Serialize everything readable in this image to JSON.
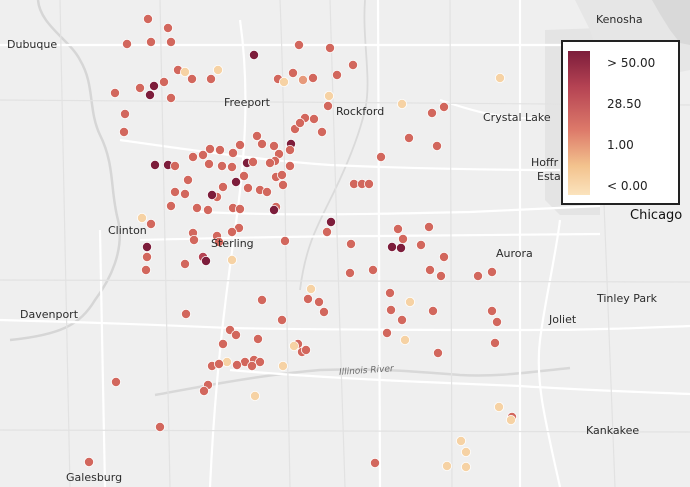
{
  "legend": {
    "labels": [
      "> 50.00",
      "28.50",
      "1.00",
      "< 0.00"
    ]
  },
  "cities": [
    {
      "name": "Kenosha",
      "big": false
    },
    {
      "name": "Dubuque",
      "big": false
    },
    {
      "name": "Freeport",
      "big": false
    },
    {
      "name": "Rockford",
      "big": false
    },
    {
      "name": "Crystal Lake",
      "big": false
    },
    {
      "name": "Hoffr",
      "big": false
    },
    {
      "name": "Esta",
      "big": false
    },
    {
      "name": "Chicago",
      "big": true
    },
    {
      "name": "Clinton",
      "big": false
    },
    {
      "name": "Sterling",
      "big": false
    },
    {
      "name": "Aurora",
      "big": false
    },
    {
      "name": "Davenport",
      "big": false
    },
    {
      "name": "Tinley Park",
      "big": false
    },
    {
      "name": "Joliet",
      "big": false
    },
    {
      "name": "Kankakee",
      "big": false
    },
    {
      "name": "Galesburg",
      "big": false
    }
  ],
  "river_label": "Illinois River",
  "colors": {
    "high": "#7d1d3b",
    "mid_high": "#b54353",
    "mid": "#d2675d",
    "low": "#e6997b",
    "none": "#f6d2a4"
  },
  "points": [
    [
      148,
      19,
      2
    ],
    [
      168,
      28,
      2
    ],
    [
      171,
      42,
      2
    ],
    [
      151,
      42,
      2
    ],
    [
      127,
      44,
      2
    ],
    [
      254,
      55,
      4
    ],
    [
      299,
      45,
      2
    ],
    [
      330,
      48,
      2
    ],
    [
      353,
      65,
      2
    ],
    [
      337,
      75,
      2
    ],
    [
      293,
      73,
      2
    ],
    [
      313,
      78,
      2
    ],
    [
      178,
      70,
      2
    ],
    [
      185,
      72,
      0
    ],
    [
      218,
      70,
      0
    ],
    [
      211,
      79,
      2
    ],
    [
      192,
      79,
      2
    ],
    [
      164,
      82,
      2
    ],
    [
      171,
      98,
      2
    ],
    [
      140,
      88,
      2
    ],
    [
      154,
      86,
      4
    ],
    [
      150,
      95,
      4
    ],
    [
      115,
      93,
      2
    ],
    [
      278,
      79,
      2
    ],
    [
      284,
      82,
      0
    ],
    [
      303,
      80,
      1
    ],
    [
      329,
      96,
      0
    ],
    [
      328,
      106,
      2
    ],
    [
      402,
      104,
      0
    ],
    [
      432,
      113,
      2
    ],
    [
      444,
      107,
      2
    ],
    [
      500,
      78,
      0
    ],
    [
      125,
      114,
      2
    ],
    [
      124,
      132,
      2
    ],
    [
      305,
      118,
      2
    ],
    [
      314,
      119,
      2
    ],
    [
      295,
      129,
      2
    ],
    [
      300,
      123,
      2
    ],
    [
      322,
      132,
      2
    ],
    [
      409,
      138,
      2
    ],
    [
      437,
      146,
      2
    ],
    [
      257,
      136,
      2
    ],
    [
      262,
      144,
      2
    ],
    [
      240,
      145,
      2
    ],
    [
      210,
      149,
      2
    ],
    [
      220,
      150,
      2
    ],
    [
      203,
      155,
      2
    ],
    [
      193,
      157,
      2
    ],
    [
      233,
      153,
      2
    ],
    [
      274,
      146,
      2
    ],
    [
      291,
      144,
      4
    ],
    [
      290,
      150,
      2
    ],
    [
      279,
      154,
      2
    ],
    [
      275,
      161,
      2
    ],
    [
      290,
      166,
      2
    ],
    [
      247,
      163,
      4
    ],
    [
      253,
      162,
      2
    ],
    [
      270,
      163,
      2
    ],
    [
      155,
      165,
      4
    ],
    [
      168,
      165,
      4
    ],
    [
      175,
      166,
      2
    ],
    [
      209,
      164,
      2
    ],
    [
      222,
      166,
      2
    ],
    [
      232,
      167,
      2
    ],
    [
      248,
      188,
      2
    ],
    [
      236,
      182,
      4
    ],
    [
      244,
      176,
      2
    ],
    [
      283,
      185,
      2
    ],
    [
      276,
      177,
      2
    ],
    [
      282,
      175,
      2
    ],
    [
      260,
      190,
      2
    ],
    [
      267,
      192,
      2
    ],
    [
      276,
      207,
      2
    ],
    [
      274,
      210,
      4
    ],
    [
      188,
      180,
      2
    ],
    [
      185,
      194,
      2
    ],
    [
      175,
      192,
      2
    ],
    [
      171,
      206,
      2
    ],
    [
      217,
      197,
      2
    ],
    [
      212,
      195,
      4
    ],
    [
      223,
      187,
      2
    ],
    [
      197,
      208,
      2
    ],
    [
      208,
      210,
      2
    ],
    [
      233,
      208,
      2
    ],
    [
      240,
      209,
      2
    ],
    [
      354,
      184,
      2
    ],
    [
      362,
      184,
      2
    ],
    [
      369,
      184,
      2
    ],
    [
      381,
      157,
      2
    ],
    [
      142,
      218,
      0
    ],
    [
      151,
      224,
      2
    ],
    [
      331,
      222,
      4
    ],
    [
      327,
      232,
      2
    ],
    [
      239,
      228,
      2
    ],
    [
      232,
      232,
      2
    ],
    [
      193,
      233,
      2
    ],
    [
      194,
      240,
      2
    ],
    [
      217,
      236,
      2
    ],
    [
      219,
      242,
      2
    ],
    [
      285,
      241,
      2
    ],
    [
      147,
      247,
      4
    ],
    [
      147,
      257,
      2
    ],
    [
      146,
      270,
      2
    ],
    [
      203,
      257,
      3
    ],
    [
      206,
      261,
      4
    ],
    [
      185,
      264,
      2
    ],
    [
      232,
      260,
      0
    ],
    [
      398,
      229,
      2
    ],
    [
      392,
      247,
      4
    ],
    [
      401,
      248,
      4
    ],
    [
      403,
      239,
      2
    ],
    [
      421,
      245,
      2
    ],
    [
      429,
      227,
      2
    ],
    [
      444,
      257,
      2
    ],
    [
      430,
      270,
      2
    ],
    [
      351,
      244,
      2
    ],
    [
      350,
      273,
      2
    ],
    [
      492,
      272,
      2
    ],
    [
      478,
      276,
      2
    ],
    [
      373,
      270,
      2
    ],
    [
      441,
      276,
      2
    ],
    [
      311,
      289,
      0
    ],
    [
      319,
      302,
      2
    ],
    [
      308,
      299,
      2
    ],
    [
      324,
      312,
      2
    ],
    [
      262,
      300,
      2
    ],
    [
      282,
      320,
      2
    ],
    [
      258,
      339,
      2
    ],
    [
      410,
      302,
      0
    ],
    [
      390,
      293,
      2
    ],
    [
      391,
      310,
      2
    ],
    [
      402,
      320,
      2
    ],
    [
      387,
      333,
      2
    ],
    [
      405,
      340,
      0
    ],
    [
      433,
      311,
      2
    ],
    [
      492,
      311,
      2
    ],
    [
      497,
      322,
      2
    ],
    [
      495,
      343,
      2
    ],
    [
      186,
      314,
      2
    ],
    [
      230,
      330,
      2
    ],
    [
      236,
      335,
      2
    ],
    [
      223,
      344,
      2
    ],
    [
      227,
      362,
      0
    ],
    [
      298,
      344,
      2
    ],
    [
      302,
      352,
      2
    ],
    [
      306,
      350,
      2
    ],
    [
      294,
      346,
      0
    ],
    [
      254,
      360,
      2
    ],
    [
      260,
      362,
      2
    ],
    [
      245,
      362,
      2
    ],
    [
      283,
      366,
      0
    ],
    [
      212,
      366,
      2
    ],
    [
      252,
      366,
      2
    ],
    [
      219,
      364,
      2
    ],
    [
      438,
      353,
      2
    ],
    [
      237,
      365,
      2
    ],
    [
      116,
      382,
      2
    ],
    [
      208,
      385,
      2
    ],
    [
      204,
      391,
      2
    ],
    [
      255,
      396,
      0
    ],
    [
      499,
      407,
      0
    ],
    [
      512,
      417,
      2
    ],
    [
      511,
      420,
      0
    ],
    [
      160,
      427,
      2
    ],
    [
      461,
      441,
      0
    ],
    [
      466,
      452,
      0
    ],
    [
      466,
      467,
      0
    ],
    [
      447,
      466,
      0
    ],
    [
      89,
      462,
      2
    ],
    [
      375,
      463,
      2
    ]
  ]
}
